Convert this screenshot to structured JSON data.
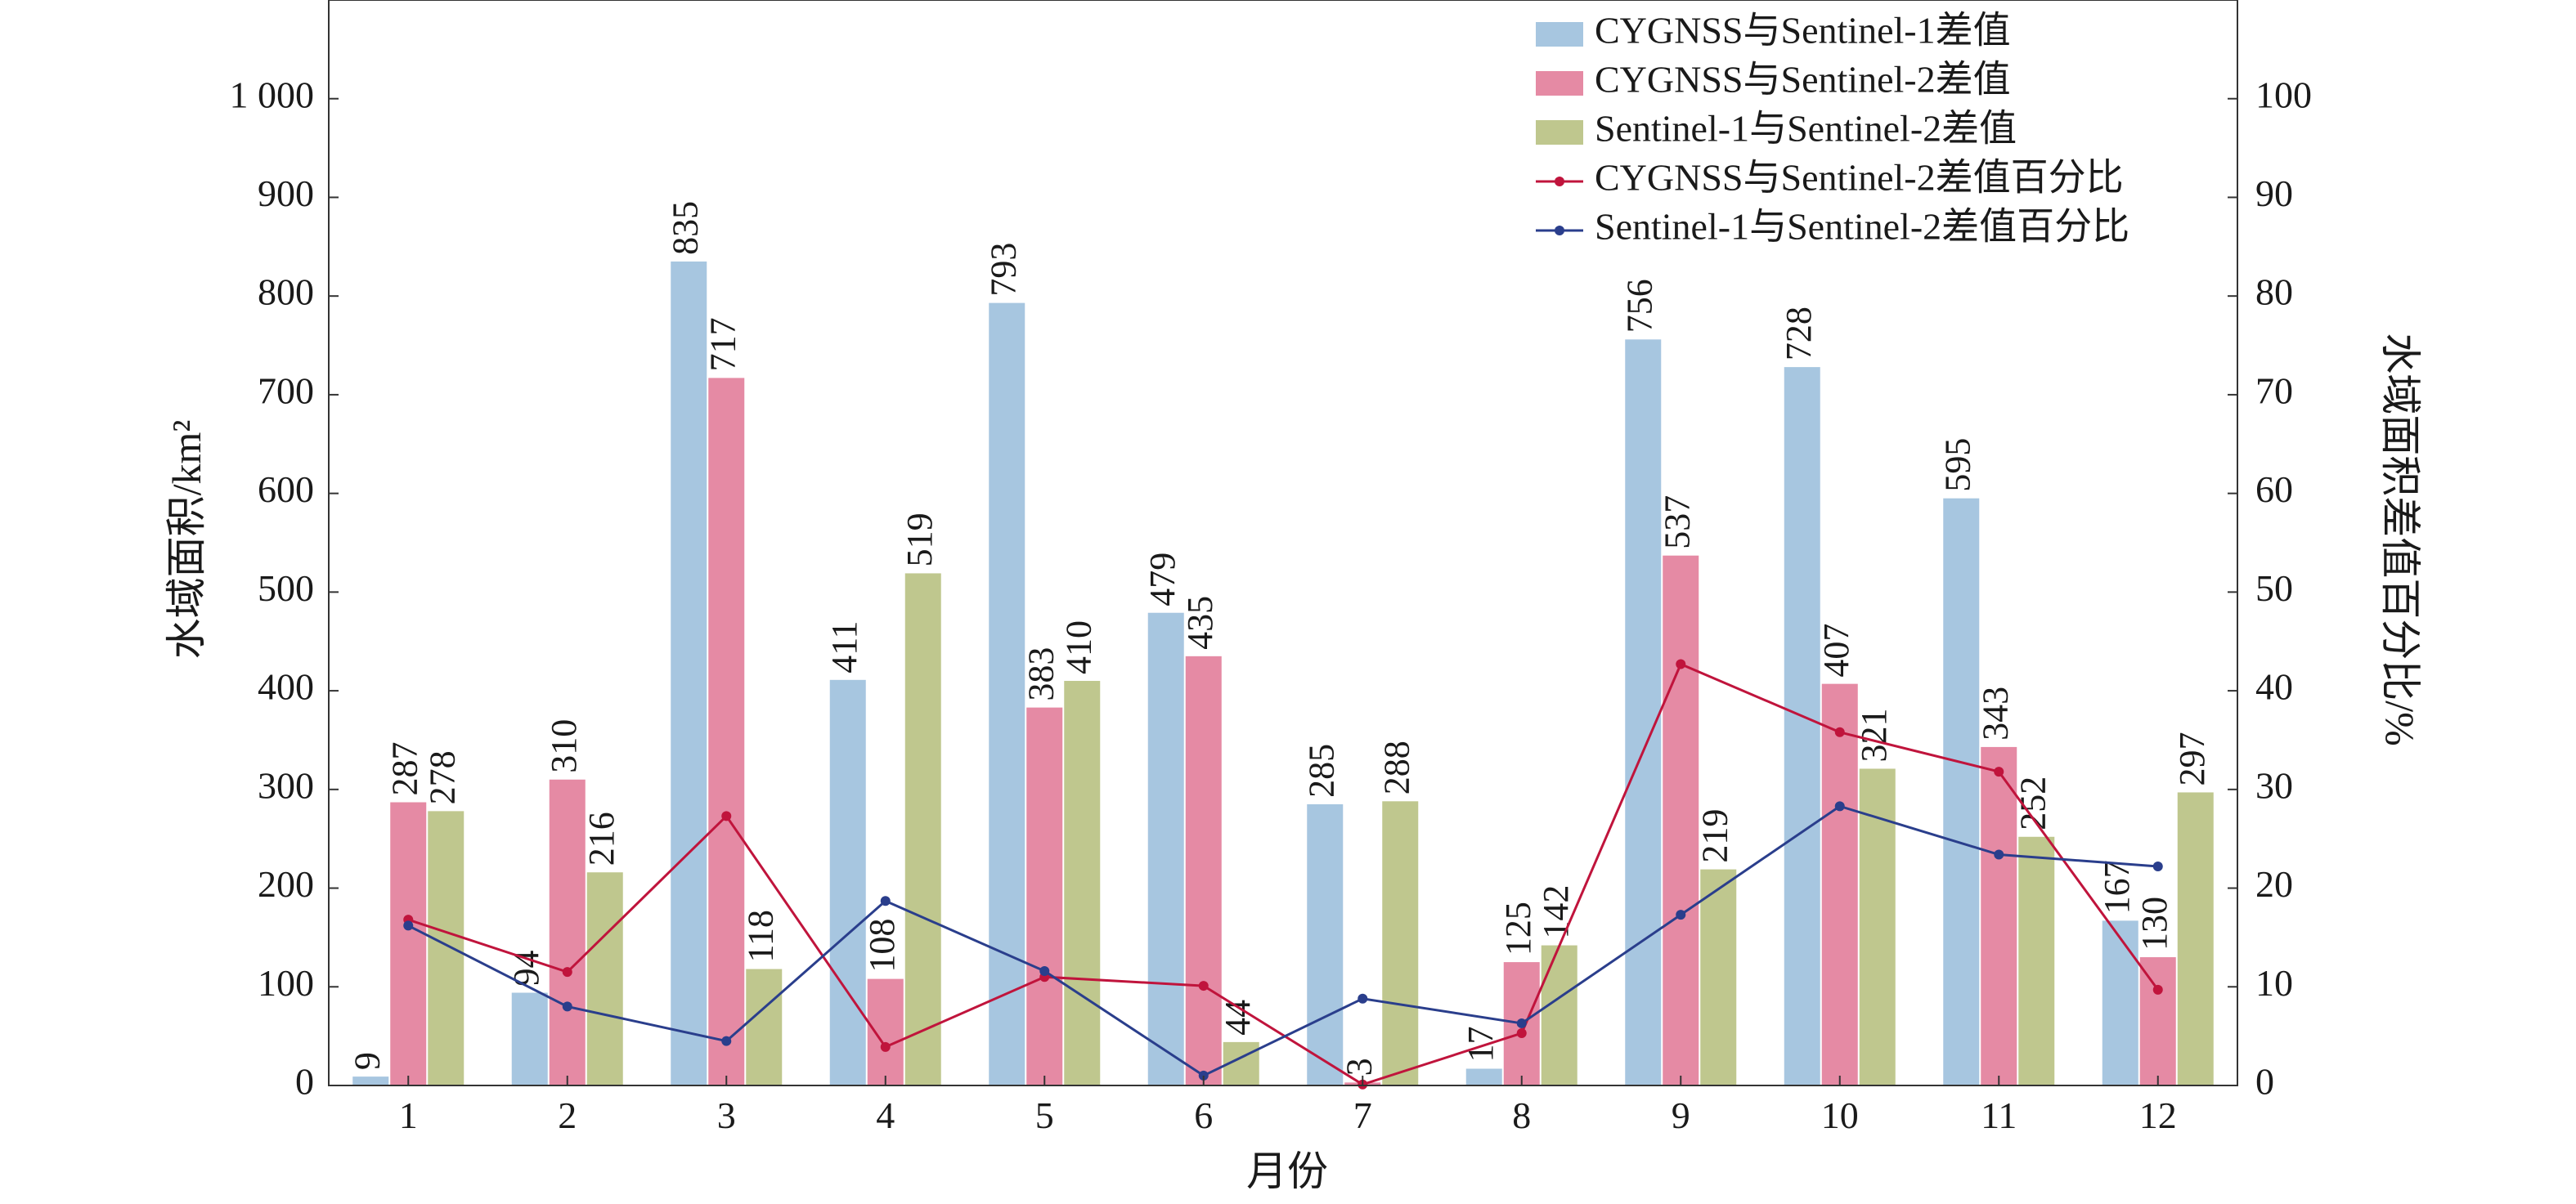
{
  "chart_data": {
    "type": "bar",
    "categories": [
      "1",
      "2",
      "3",
      "4",
      "5",
      "6",
      "7",
      "8",
      "9",
      "10",
      "11",
      "12"
    ],
    "xlabel": "月份",
    "ylabel": "水域面积/km²",
    "ylabel_right": "水域面积差值百分比/%",
    "ylim": [
      0,
      1100
    ],
    "ylim_right": [
      0,
      110
    ],
    "yticks": [
      0,
      100,
      200,
      300,
      400,
      500,
      600,
      700,
      800,
      900,
      1000
    ],
    "ytick_labels": [
      "0",
      "100",
      "200",
      "300",
      "400",
      "500",
      "600",
      "700",
      "800",
      "900",
      "1 000"
    ],
    "yticks_right": [
      0,
      10,
      20,
      30,
      40,
      50,
      60,
      70,
      80,
      90,
      100
    ],
    "legend_position": "top-right",
    "grid": false,
    "series": [
      {
        "name": "CYGNSS与Sentinel-1差值",
        "kind": "bar",
        "color": "#a7c6e0",
        "values": [
          9,
          94,
          835,
          411,
          793,
          479,
          285,
          17,
          756,
          728,
          595,
          167
        ],
        "labels": [
          "9",
          "94",
          "835",
          "411",
          "793",
          "479",
          "285",
          "17",
          "756",
          "728",
          "595",
          "167"
        ]
      },
      {
        "name": "CYGNSS与Sentinel-2差值",
        "kind": "bar",
        "color": "#e58aa4",
        "values": [
          287,
          310,
          717,
          108,
          383,
          435,
          3,
          125,
          537,
          407,
          343,
          130
        ],
        "labels": [
          "287",
          "310",
          "717",
          "108",
          "383",
          "435",
          "3",
          "125",
          "537",
          "407",
          "343",
          "130"
        ]
      },
      {
        "name": "Sentinel-1与Sentinel-2差值",
        "kind": "bar",
        "color": "#bfc78e",
        "values": [
          278,
          216,
          118,
          519,
          410,
          44,
          288,
          142,
          219,
          321,
          252,
          297
        ],
        "labels": [
          "278",
          "216",
          "118",
          "519",
          "410",
          "44",
          "288",
          "142",
          "219",
          "321",
          "252",
          "297"
        ]
      },
      {
        "name": "CYGNSS与Sentinel-2差值百分比",
        "kind": "line",
        "axis": "right",
        "color": "#c0143c",
        "values": [
          16.8,
          11.5,
          27.3,
          3.9,
          11.0,
          10.1,
          0.1,
          5.3,
          42.7,
          35.8,
          31.8,
          9.7
        ]
      },
      {
        "name": "Sentinel-1与Sentinel-2差值百分比",
        "kind": "line",
        "axis": "right",
        "color": "#2a3e8c",
        "values": [
          16.2,
          8.0,
          4.5,
          18.7,
          11.6,
          1.0,
          8.8,
          6.3,
          17.3,
          28.3,
          23.4,
          22.2
        ]
      }
    ]
  }
}
